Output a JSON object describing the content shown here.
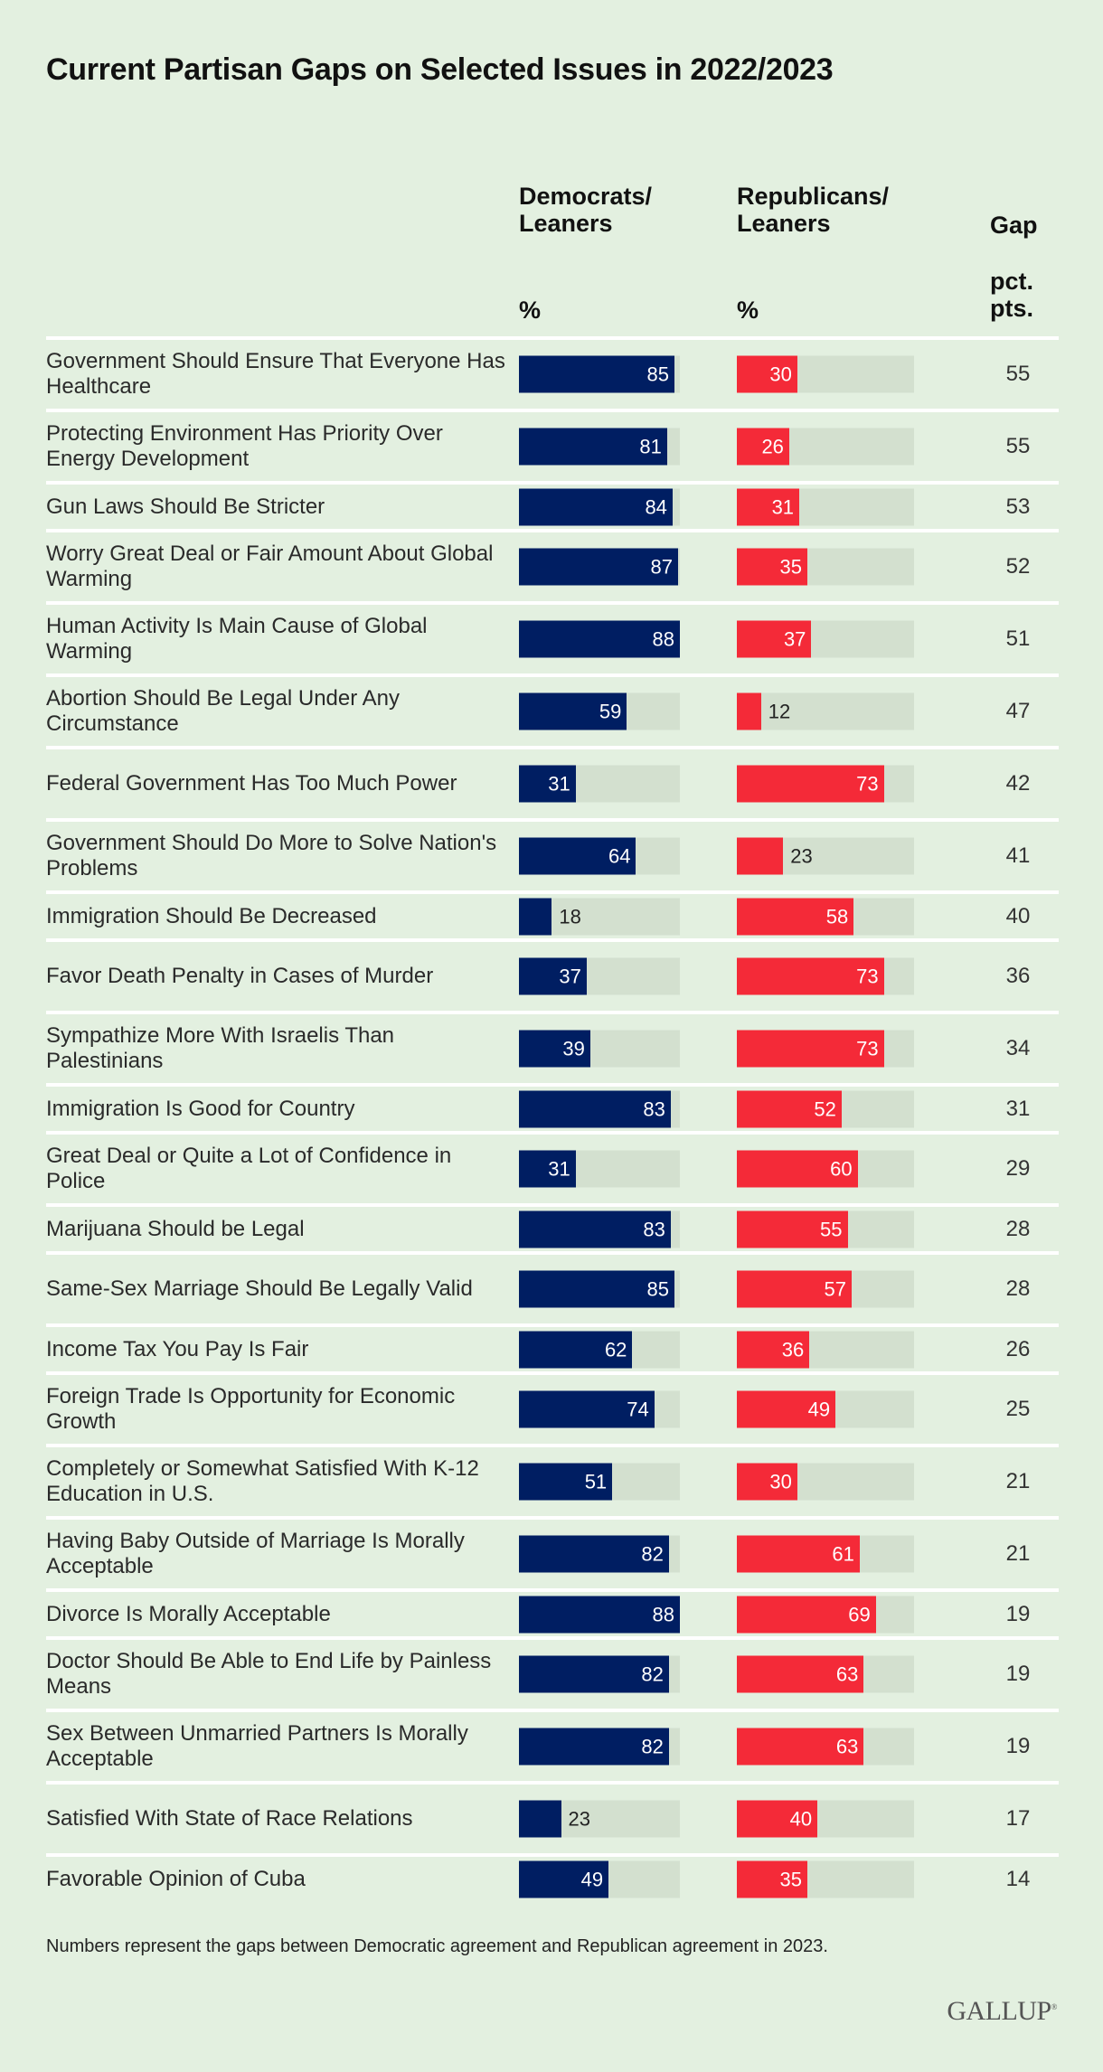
{
  "chart_data": {
    "type": "bar",
    "title": "Current Partisan Gaps on Selected Issues in 2022/2023",
    "columns": {
      "dem": "Democrats/ Leaners",
      "dem_unit": "%",
      "rep": "Republicans/ Leaners",
      "rep_unit": "%",
      "gap": "Gap",
      "gap_unit": "pct. pts."
    },
    "colors": {
      "dem": "#001e62",
      "rep": "#f42a38",
      "track": "#d3e0cf"
    },
    "rows": [
      {
        "label": "Government Should Ensure That Everyone Has Healthcare",
        "dem": 85,
        "rep": 30,
        "gap": 55
      },
      {
        "label": "Protecting Environment Has Priority Over Energy Development",
        "dem": 81,
        "rep": 26,
        "gap": 55
      },
      {
        "label": "Gun Laws Should Be Stricter",
        "dem": 84,
        "rep": 31,
        "gap": 53
      },
      {
        "label": "Worry Great Deal or Fair Amount About Global Warming",
        "dem": 87,
        "rep": 35,
        "gap": 52
      },
      {
        "label": "Human Activity Is Main Cause of Global Warming",
        "dem": 88,
        "rep": 37,
        "gap": 51
      },
      {
        "label": "Abortion Should Be Legal Under Any Circumstance",
        "dem": 59,
        "rep": 12,
        "gap": 47
      },
      {
        "label": "Federal Government Has Too Much Power",
        "dem": 31,
        "rep": 73,
        "gap": 42
      },
      {
        "label": "Government Should Do More to Solve Nation's Problems",
        "dem": 64,
        "rep": 23,
        "gap": 41
      },
      {
        "label": "Immigration Should Be Decreased",
        "dem": 18,
        "rep": 58,
        "gap": 40
      },
      {
        "label": "Favor Death Penalty in Cases of Murder",
        "dem": 37,
        "rep": 73,
        "gap": 36
      },
      {
        "label": "Sympathize More With Israelis Than Palestinians",
        "dem": 39,
        "rep": 73,
        "gap": 34
      },
      {
        "label": "Immigration Is Good for Country",
        "dem": 83,
        "rep": 52,
        "gap": 31
      },
      {
        "label": "Great Deal or Quite a Lot of Confidence in Police",
        "dem": 31,
        "rep": 60,
        "gap": 29
      },
      {
        "label": "Marijuana Should be Legal",
        "dem": 83,
        "rep": 55,
        "gap": 28
      },
      {
        "label": "Same-Sex Marriage Should Be Legally Valid",
        "dem": 85,
        "rep": 57,
        "gap": 28
      },
      {
        "label": "Income Tax You Pay Is Fair",
        "dem": 62,
        "rep": 36,
        "gap": 26
      },
      {
        "label": "Foreign Trade Is Opportunity for Economic Growth",
        "dem": 74,
        "rep": 49,
        "gap": 25
      },
      {
        "label": "Completely or Somewhat Satisfied With K-12 Education in U.S.",
        "dem": 51,
        "rep": 30,
        "gap": 21
      },
      {
        "label": "Having Baby Outside of Marriage Is Morally Acceptable",
        "dem": 82,
        "rep": 61,
        "gap": 21
      },
      {
        "label": "Divorce Is Morally Acceptable",
        "dem": 88,
        "rep": 69,
        "gap": 19
      },
      {
        "label": "Doctor Should Be Able to End Life by Painless Means",
        "dem": 82,
        "rep": 63,
        "gap": 19
      },
      {
        "label": "Sex Between Unmarried Partners Is Morally Acceptable",
        "dem": 82,
        "rep": 63,
        "gap": 19
      },
      {
        "label": "Satisfied With State of Race Relations",
        "dem": 23,
        "rep": 40,
        "gap": 17
      },
      {
        "label": "Favorable Opinion of Cuba",
        "dem": 49,
        "rep": 35,
        "gap": 14
      }
    ],
    "scale_max": 88
  },
  "footnote": "Numbers represent the gaps between Democratic agreement and Republican agreement in 2023.",
  "logo": "GALLUP"
}
